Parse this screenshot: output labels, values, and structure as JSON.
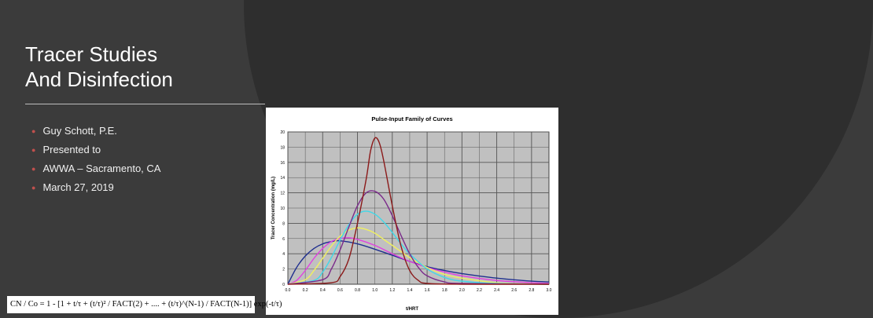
{
  "slide": {
    "title": "Tracer Studies",
    "subtitle": "And Disinfection",
    "bullets": [
      "Guy Schott, P.E.",
      "Presented to",
      "AWWA – Sacramento, CA",
      "March 27, 2019"
    ],
    "bullet_color": "#c0504d",
    "formula": "CN / Co = 1 - [1 + t/τ + (t/τ)² / FACT(2) + .... + (t/τ)^(N-1) / FACT(N-1)] exp(-t/τ)"
  },
  "chart_data": {
    "type": "line",
    "title": "Pulse-Input Family of Curves",
    "xlabel": "t/HRT",
    "ylabel": "Tracer Concentration (mg/L)",
    "xlim": [
      0,
      3.0
    ],
    "ylim": [
      0,
      20
    ],
    "xticks": [
      "0.0",
      "0.2",
      "0.4",
      "0.6",
      "0.8",
      "1.0",
      "1.2",
      "1.4",
      "1.6",
      "1.8",
      "2.0",
      "2.2",
      "2.4",
      "2.6",
      "2.8",
      "3.0"
    ],
    "yticks": [
      "0",
      "2",
      "4",
      "6",
      "8",
      "10",
      "12",
      "14",
      "16",
      "18",
      "20"
    ],
    "grid": true,
    "plot_background": "#c0c0c0",
    "series": [
      {
        "color": "#1f2f8f",
        "x": [
          0,
          0.1,
          0.2,
          0.3,
          0.4,
          0.5,
          0.6,
          0.8,
          1.0,
          1.2,
          1.4,
          1.6,
          1.8,
          2.0,
          2.4,
          2.8,
          3.0
        ],
        "y": [
          0,
          2.2,
          3.7,
          4.7,
          5.3,
          5.6,
          5.7,
          5.3,
          4.6,
          3.8,
          3.0,
          2.3,
          1.8,
          1.4,
          0.8,
          0.4,
          0.3
        ]
      },
      {
        "color": "#e040e0",
        "x": [
          0,
          0.1,
          0.2,
          0.3,
          0.4,
          0.5,
          0.6,
          0.7,
          0.8,
          1.0,
          1.2,
          1.4,
          1.6,
          1.8,
          2.0,
          2.4,
          2.8,
          3.0
        ],
        "y": [
          0,
          0.5,
          1.8,
          3.4,
          4.7,
          5.6,
          6.0,
          6.1,
          5.9,
          5.1,
          4.0,
          3.0,
          2.2,
          1.6,
          1.1,
          0.5,
          0.2,
          0.1
        ]
      },
      {
        "color": "#f0f060",
        "x": [
          0,
          0.2,
          0.3,
          0.4,
          0.5,
          0.6,
          0.7,
          0.8,
          0.9,
          1.0,
          1.1,
          1.2,
          1.4,
          1.6,
          1.8,
          2.0,
          2.4,
          3.0
        ],
        "y": [
          0,
          0.6,
          1.8,
          3.4,
          5.0,
          6.3,
          7.1,
          7.4,
          7.2,
          6.7,
          5.9,
          5.1,
          3.5,
          2.2,
          1.3,
          0.8,
          0.2,
          0
        ]
      },
      {
        "color": "#40d8e8",
        "x": [
          0,
          0.3,
          0.4,
          0.5,
          0.6,
          0.7,
          0.8,
          0.9,
          1.0,
          1.1,
          1.2,
          1.3,
          1.4,
          1.6,
          1.8,
          2.0,
          2.4,
          3.0
        ],
        "y": [
          0,
          0.5,
          1.6,
          3.5,
          5.8,
          7.8,
          9.2,
          9.6,
          9.2,
          8.2,
          6.8,
          5.3,
          4.0,
          2.0,
          0.9,
          0.4,
          0.1,
          0
        ]
      },
      {
        "color": "#7a2a8a",
        "x": [
          0,
          0.4,
          0.5,
          0.6,
          0.7,
          0.8,
          0.9,
          1.0,
          1.1,
          1.2,
          1.3,
          1.4,
          1.5,
          1.6,
          1.8,
          2.0,
          3.0
        ],
        "y": [
          0,
          0.6,
          2.0,
          4.5,
          7.5,
          10.3,
          12.0,
          12.2,
          11.2,
          9.0,
          6.4,
          4.0,
          2.2,
          1.1,
          0.3,
          0.1,
          0
        ]
      },
      {
        "color": "#8b1a1a",
        "x": [
          0,
          0.5,
          0.6,
          0.7,
          0.8,
          0.9,
          0.95,
          1.0,
          1.05,
          1.1,
          1.2,
          1.3,
          1.4,
          1.5,
          1.6,
          2.0,
          3.0
        ],
        "y": [
          0,
          0.2,
          1.0,
          3.3,
          8.0,
          13.8,
          17.5,
          19.2,
          18.6,
          16.3,
          10.3,
          5.0,
          1.8,
          0.5,
          0.1,
          0,
          0
        ]
      }
    ]
  }
}
